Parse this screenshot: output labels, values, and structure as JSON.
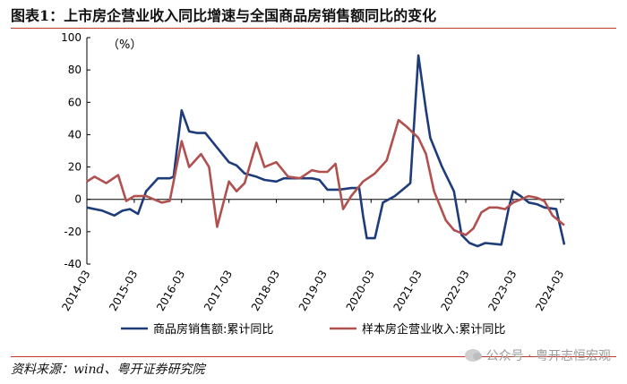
{
  "title": "图表1：上市房企营业收入同比增速与全国商品房销售额同比的变化",
  "source": "资料来源：wind、粤开证券研究院",
  "watermark": "公众号 · 粤开志恒宏观",
  "chart_data": {
    "type": "line",
    "unit_label": "（%）",
    "ylim": [
      -40,
      100
    ],
    "yticks": [
      -40,
      -20,
      0,
      20,
      40,
      60,
      80,
      100
    ],
    "xlim": [
      2014.17,
      2024.25
    ],
    "xticks": [
      {
        "label": "2014-03",
        "x": 2014.17
      },
      {
        "label": "2015-03",
        "x": 2015.17
      },
      {
        "label": "2016-03",
        "x": 2016.17
      },
      {
        "label": "2017-03",
        "x": 2017.17
      },
      {
        "label": "2018-03",
        "x": 2018.17
      },
      {
        "label": "2019-03",
        "x": 2019.17
      },
      {
        "label": "2020-03",
        "x": 2020.17
      },
      {
        "label": "2021-03",
        "x": 2021.17
      },
      {
        "label": "2022-03",
        "x": 2022.17
      },
      {
        "label": "2023-03",
        "x": 2023.17
      },
      {
        "label": "2024-03",
        "x": 2024.17
      }
    ],
    "legend_position": "bottom",
    "series": [
      {
        "name": "商品房销售额:累计同比",
        "color": "#1f3c7a",
        "points": [
          [
            2014.17,
            -5
          ],
          [
            2014.5,
            -7
          ],
          [
            2014.75,
            -10
          ],
          [
            2014.92,
            -7
          ],
          [
            2015.08,
            -6
          ],
          [
            2015.25,
            -9
          ],
          [
            2015.42,
            5
          ],
          [
            2015.67,
            13
          ],
          [
            2015.92,
            13
          ],
          [
            2016.0,
            14
          ],
          [
            2016.17,
            55
          ],
          [
            2016.33,
            42
          ],
          [
            2016.5,
            41
          ],
          [
            2016.67,
            41
          ],
          [
            2016.92,
            32
          ],
          [
            2017.17,
            23
          ],
          [
            2017.33,
            21
          ],
          [
            2017.5,
            16
          ],
          [
            2017.75,
            14
          ],
          [
            2017.92,
            12
          ],
          [
            2018.17,
            11
          ],
          [
            2018.33,
            13
          ],
          [
            2018.67,
            13
          ],
          [
            2018.92,
            13
          ],
          [
            2019.08,
            12
          ],
          [
            2019.25,
            6
          ],
          [
            2019.5,
            6
          ],
          [
            2019.75,
            7
          ],
          [
            2019.92,
            7
          ],
          [
            2020.0,
            -10
          ],
          [
            2020.08,
            -24
          ],
          [
            2020.25,
            -24
          ],
          [
            2020.42,
            -2
          ],
          [
            2020.67,
            2
          ],
          [
            2020.92,
            8
          ],
          [
            2021.0,
            10
          ],
          [
            2021.17,
            89
          ],
          [
            2021.33,
            55
          ],
          [
            2021.42,
            38
          ],
          [
            2021.67,
            20
          ],
          [
            2021.92,
            5
          ],
          [
            2022.08,
            -22
          ],
          [
            2022.25,
            -27
          ],
          [
            2022.42,
            -29
          ],
          [
            2022.58,
            -27
          ],
          [
            2022.92,
            -28
          ],
          [
            2023.08,
            -5
          ],
          [
            2023.17,
            5
          ],
          [
            2023.33,
            2
          ],
          [
            2023.5,
            -2
          ],
          [
            2023.67,
            -3
          ],
          [
            2023.83,
            -5
          ],
          [
            2024.08,
            -6
          ],
          [
            2024.25,
            -28
          ]
        ]
      },
      {
        "name": "样本房企营业收入:累计同比",
        "color": "#b0504f",
        "points": [
          [
            2014.17,
            11
          ],
          [
            2014.33,
            14
          ],
          [
            2014.58,
            10
          ],
          [
            2014.83,
            15
          ],
          [
            2015.0,
            -1
          ],
          [
            2015.17,
            2
          ],
          [
            2015.42,
            2
          ],
          [
            2015.75,
            -2
          ],
          [
            2015.92,
            -1
          ],
          [
            2016.17,
            36
          ],
          [
            2016.33,
            20
          ],
          [
            2016.58,
            28
          ],
          [
            2016.75,
            20
          ],
          [
            2016.92,
            -17
          ],
          [
            2017.17,
            11
          ],
          [
            2017.33,
            5
          ],
          [
            2017.5,
            10
          ],
          [
            2017.75,
            35
          ],
          [
            2017.92,
            20
          ],
          [
            2018.17,
            23
          ],
          [
            2018.42,
            14
          ],
          [
            2018.67,
            13
          ],
          [
            2018.92,
            18
          ],
          [
            2019.08,
            17
          ],
          [
            2019.25,
            17
          ],
          [
            2019.42,
            22
          ],
          [
            2019.58,
            -6
          ],
          [
            2019.75,
            2
          ],
          [
            2020.0,
            11
          ],
          [
            2020.25,
            16
          ],
          [
            2020.5,
            24
          ],
          [
            2020.75,
            49
          ],
          [
            2020.92,
            45
          ],
          [
            2021.17,
            38
          ],
          [
            2021.33,
            28
          ],
          [
            2021.5,
            5
          ],
          [
            2021.75,
            -13
          ],
          [
            2021.92,
            -19
          ],
          [
            2022.17,
            -22
          ],
          [
            2022.33,
            -18
          ],
          [
            2022.5,
            -8
          ],
          [
            2022.67,
            -5
          ],
          [
            2022.83,
            -5
          ],
          [
            2023.0,
            -6
          ],
          [
            2023.17,
            -2
          ],
          [
            2023.5,
            2
          ],
          [
            2023.67,
            1
          ],
          [
            2023.83,
            -1
          ],
          [
            2024.0,
            -10
          ],
          [
            2024.25,
            -16
          ]
        ]
      }
    ]
  }
}
